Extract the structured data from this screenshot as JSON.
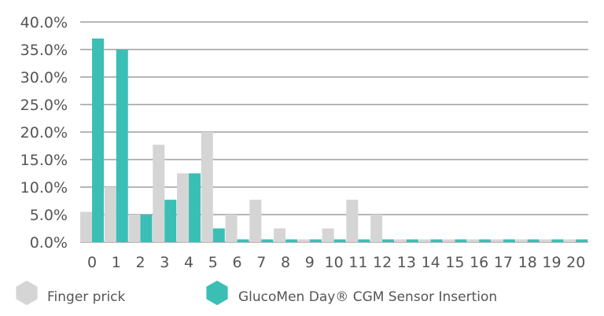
{
  "chart_data": {
    "type": "bar",
    "categories": [
      "0",
      "1",
      "2",
      "3",
      "4",
      "5",
      "6",
      "7",
      "8",
      "9",
      "10",
      "11",
      "12",
      "13",
      "14",
      "15",
      "16",
      "17",
      "18",
      "19",
      "20"
    ],
    "series": [
      {
        "name": "Finger prick",
        "color": "#d5d5d5",
        "values": [
          5.5,
          10.0,
          5.0,
          17.7,
          12.5,
          20.0,
          5.0,
          7.7,
          2.5,
          0.5,
          2.5,
          7.7,
          5.0,
          0.5,
          0.5,
          0.5,
          0.5,
          0.5,
          0.5,
          0.5,
          0.5
        ]
      },
      {
        "name": "GlucoMen Day® CGM Sensor Insertion",
        "color": "#3bbfb5",
        "values": [
          37.0,
          35.0,
          5.0,
          7.7,
          12.5,
          2.5,
          0.5,
          0.5,
          0.5,
          0.5,
          0.5,
          0.5,
          0.5,
          0.5,
          0.5,
          0.5,
          0.5,
          0.5,
          0.5,
          0.5,
          0.5
        ]
      }
    ],
    "yticks": [
      "0.0%",
      "5.0%",
      "10.0%",
      "15.0%",
      "20.0%",
      "25.0%",
      "30.0%",
      "35.0%",
      "40.0%"
    ],
    "ylim": [
      0,
      40
    ],
    "grid": true,
    "legend_position": "bottom-left"
  }
}
